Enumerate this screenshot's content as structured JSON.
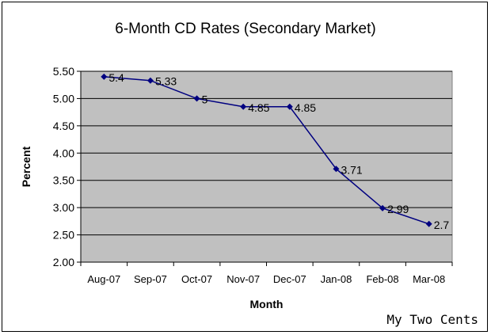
{
  "chart_data": {
    "type": "line",
    "title": "6-Month CD Rates (Secondary Market)",
    "xlabel": "Month",
    "ylabel": "Percent",
    "categories": [
      "Aug-07",
      "Sep-07",
      "Oct-07",
      "Nov-07",
      "Dec-07",
      "Jan-08",
      "Feb-08",
      "Mar-08"
    ],
    "series": [
      {
        "values": [
          5.4,
          5.33,
          5,
          4.85,
          4.85,
          3.71,
          2.99,
          2.7
        ],
        "color": "#000080"
      }
    ],
    "data_labels": [
      "5.4",
      "5.33",
      "5",
      "4.85",
      "4.85",
      "3.71",
      "2.99",
      "2.7"
    ],
    "ylim": [
      2.0,
      5.5
    ],
    "yticks": [
      "2.00",
      "2.50",
      "3.00",
      "3.50",
      "4.00",
      "4.50",
      "5.00",
      "5.50"
    ],
    "grid": true,
    "legend": "none",
    "plot_background": "#c0c0c0"
  },
  "watermark": "My Two Cents"
}
